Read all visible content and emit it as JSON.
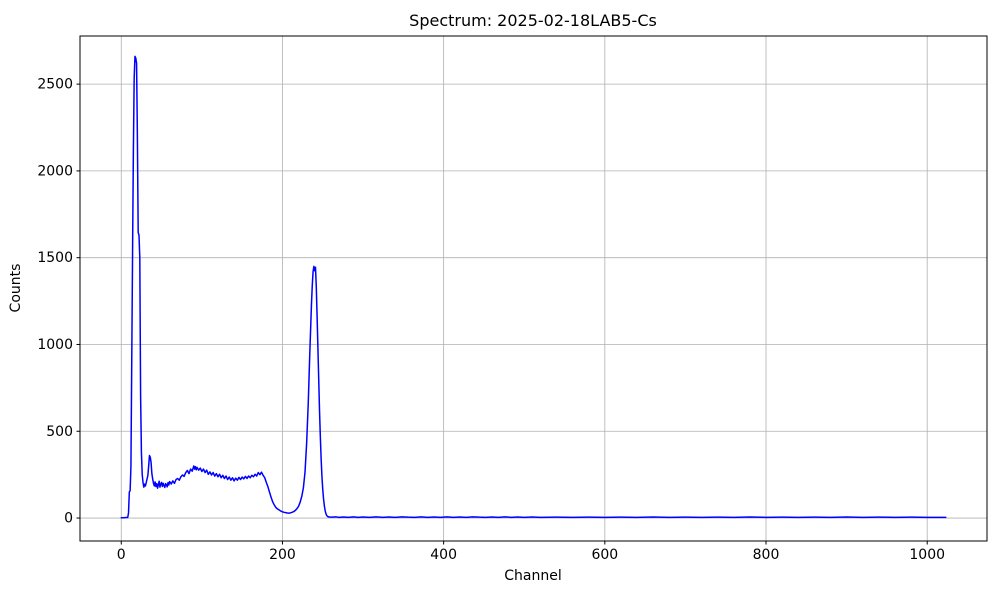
{
  "title": "Spectrum: 2025-02-18LAB5-Cs",
  "chart_data": {
    "type": "line",
    "title": "Spectrum: 2025-02-18LAB5-Cs",
    "xlabel": "Channel",
    "ylabel": "Counts",
    "x_ticks": [
      0,
      200,
      400,
      600,
      800,
      1000
    ],
    "y_ticks": [
      0,
      500,
      1000,
      1500,
      2000,
      2500
    ],
    "xlim": [
      -51.2,
      1074.2
    ],
    "ylim": [
      -132.3,
      2777.3
    ],
    "grid": true,
    "legend": null,
    "colors": {
      "line": "#0000ff",
      "grid": "#b0b0b0",
      "spine": "#000000",
      "background": "#ffffff"
    },
    "series": [
      {
        "name": "spectrum",
        "points": [
          [
            0,
            2
          ],
          [
            3,
            2
          ],
          [
            6,
            3
          ],
          [
            8,
            3
          ],
          [
            9,
            30
          ],
          [
            10,
            150
          ],
          [
            11,
            158
          ],
          [
            12,
            300
          ],
          [
            13,
            900
          ],
          [
            14,
            1515
          ],
          [
            15,
            2100
          ],
          [
            16,
            2530
          ],
          [
            17,
            2660
          ],
          [
            18,
            2650
          ],
          [
            19,
            2620
          ],
          [
            20,
            2200
          ],
          [
            21,
            1645
          ],
          [
            22,
            1630
          ],
          [
            23,
            1500
          ],
          [
            24,
            700
          ],
          [
            25,
            380
          ],
          [
            26,
            250
          ],
          [
            27,
            205
          ],
          [
            28,
            178
          ],
          [
            29,
            195
          ],
          [
            30,
            185
          ],
          [
            31,
            205
          ],
          [
            32,
            225
          ],
          [
            33,
            245
          ],
          [
            34,
            300
          ],
          [
            35,
            360
          ],
          [
            36,
            350
          ],
          [
            37,
            320
          ],
          [
            38,
            255
          ],
          [
            39,
            225
          ],
          [
            40,
            200
          ],
          [
            41,
            185
          ],
          [
            42,
            208
          ],
          [
            43,
            182
          ],
          [
            44,
            198
          ],
          [
            45,
            172
          ],
          [
            46,
            192
          ],
          [
            47,
            212
          ],
          [
            48,
            178
          ],
          [
            49,
            196
          ],
          [
            50,
            205
          ],
          [
            51,
            182
          ],
          [
            52,
            200
          ],
          [
            53,
            188
          ],
          [
            54,
            176
          ],
          [
            55,
            198
          ],
          [
            56,
            192
          ],
          [
            57,
            180
          ],
          [
            58,
            204
          ],
          [
            59,
            190
          ],
          [
            60,
            210
          ],
          [
            62,
            196
          ],
          [
            64,
            214
          ],
          [
            66,
            200
          ],
          [
            68,
            222
          ],
          [
            70,
            228
          ],
          [
            72,
            218
          ],
          [
            74,
            238
          ],
          [
            76,
            248
          ],
          [
            78,
            240
          ],
          [
            80,
            262
          ],
          [
            82,
            274
          ],
          [
            84,
            256
          ],
          [
            86,
            282
          ],
          [
            88,
            270
          ],
          [
            90,
            300
          ],
          [
            91,
            282
          ],
          [
            92,
            296
          ],
          [
            93,
            278
          ],
          [
            94,
            292
          ],
          [
            96,
            276
          ],
          [
            98,
            288
          ],
          [
            100,
            268
          ],
          [
            102,
            282
          ],
          [
            104,
            262
          ],
          [
            106,
            276
          ],
          [
            108,
            252
          ],
          [
            110,
            266
          ],
          [
            112,
            248
          ],
          [
            114,
            262
          ],
          [
            116,
            242
          ],
          [
            118,
            256
          ],
          [
            120,
            238
          ],
          [
            122,
            252
          ],
          [
            124,
            232
          ],
          [
            126,
            246
          ],
          [
            128,
            228
          ],
          [
            130,
            242
          ],
          [
            132,
            222
          ],
          [
            134,
            236
          ],
          [
            136,
            218
          ],
          [
            138,
            232
          ],
          [
            140,
            214
          ],
          [
            142,
            230
          ],
          [
            144,
            218
          ],
          [
            146,
            234
          ],
          [
            148,
            222
          ],
          [
            150,
            236
          ],
          [
            152,
            226
          ],
          [
            154,
            240
          ],
          [
            156,
            228
          ],
          [
            158,
            242
          ],
          [
            160,
            232
          ],
          [
            162,
            246
          ],
          [
            164,
            238
          ],
          [
            166,
            252
          ],
          [
            168,
            242
          ],
          [
            170,
            262
          ],
          [
            172,
            250
          ],
          [
            174,
            264
          ],
          [
            176,
            246
          ],
          [
            178,
            232
          ],
          [
            180,
            205
          ],
          [
            182,
            180
          ],
          [
            184,
            148
          ],
          [
            186,
            118
          ],
          [
            188,
            92
          ],
          [
            190,
            74
          ],
          [
            192,
            60
          ],
          [
            194,
            52
          ],
          [
            196,
            46
          ],
          [
            198,
            40
          ],
          [
            200,
            36
          ],
          [
            202,
            33
          ],
          [
            204,
            31
          ],
          [
            206,
            29
          ],
          [
            208,
            28
          ],
          [
            210,
            30
          ],
          [
            212,
            33
          ],
          [
            214,
            37
          ],
          [
            216,
            44
          ],
          [
            218,
            54
          ],
          [
            220,
            68
          ],
          [
            222,
            92
          ],
          [
            224,
            125
          ],
          [
            226,
            175
          ],
          [
            228,
            265
          ],
          [
            230,
            430
          ],
          [
            232,
            660
          ],
          [
            234,
            960
          ],
          [
            236,
            1230
          ],
          [
            237,
            1340
          ],
          [
            238,
            1420
          ],
          [
            239,
            1450
          ],
          [
            240,
            1425
          ],
          [
            241,
            1445
          ],
          [
            242,
            1330
          ],
          [
            243,
            1160
          ],
          [
            244,
            980
          ],
          [
            245,
            800
          ],
          [
            246,
            620
          ],
          [
            247,
            470
          ],
          [
            248,
            340
          ],
          [
            249,
            240
          ],
          [
            250,
            165
          ],
          [
            251,
            110
          ],
          [
            252,
            70
          ],
          [
            253,
            42
          ],
          [
            254,
            24
          ],
          [
            255,
            14
          ],
          [
            256,
            9
          ],
          [
            258,
            6
          ],
          [
            262,
            5
          ],
          [
            266,
            7
          ],
          [
            270,
            4
          ],
          [
            276,
            6
          ],
          [
            282,
            4
          ],
          [
            288,
            7
          ],
          [
            294,
            4
          ],
          [
            300,
            6
          ],
          [
            308,
            4
          ],
          [
            316,
            7
          ],
          [
            324,
            4
          ],
          [
            332,
            6
          ],
          [
            340,
            4
          ],
          [
            348,
            7
          ],
          [
            356,
            5
          ],
          [
            364,
            4
          ],
          [
            372,
            7
          ],
          [
            380,
            4
          ],
          [
            388,
            6
          ],
          [
            396,
            4
          ],
          [
            404,
            7
          ],
          [
            412,
            4
          ],
          [
            420,
            6
          ],
          [
            428,
            4
          ],
          [
            436,
            7
          ],
          [
            444,
            5
          ],
          [
            452,
            4
          ],
          [
            460,
            6
          ],
          [
            468,
            4
          ],
          [
            476,
            7
          ],
          [
            484,
            4
          ],
          [
            492,
            6
          ],
          [
            500,
            4
          ],
          [
            510,
            6
          ],
          [
            520,
            4
          ],
          [
            540,
            5
          ],
          [
            560,
            4
          ],
          [
            580,
            5
          ],
          [
            600,
            4
          ],
          [
            620,
            5
          ],
          [
            640,
            4
          ],
          [
            660,
            6
          ],
          [
            680,
            4
          ],
          [
            700,
            5
          ],
          [
            720,
            4
          ],
          [
            740,
            5
          ],
          [
            760,
            4
          ],
          [
            780,
            6
          ],
          [
            800,
            4
          ],
          [
            820,
            5
          ],
          [
            840,
            4
          ],
          [
            860,
            5
          ],
          [
            880,
            4
          ],
          [
            900,
            6
          ],
          [
            920,
            4
          ],
          [
            940,
            5
          ],
          [
            960,
            4
          ],
          [
            980,
            5
          ],
          [
            1000,
            4
          ],
          [
            1023,
            4
          ]
        ]
      }
    ]
  }
}
